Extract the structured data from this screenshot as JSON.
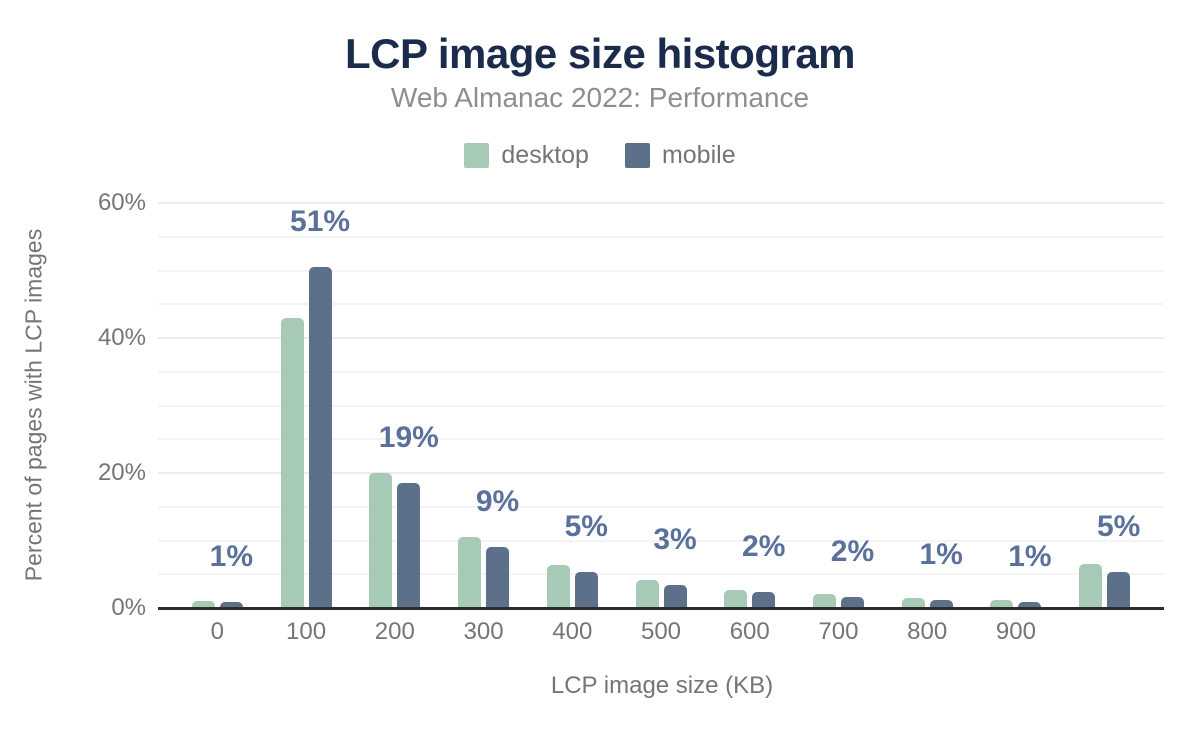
{
  "chart": {
    "title": "LCP image size histogram",
    "subtitle": "Web Almanac 2022: Performance",
    "x_axis_title": "LCP image size (KB)",
    "y_axis_title": "Percent of pages with LCP images"
  },
  "chart_data": {
    "type": "bar",
    "title": "LCP image size histogram",
    "subtitle": "Web Almanac 2022: Performance",
    "categories": [
      "0",
      "100",
      "200",
      "300",
      "400",
      "500",
      "600",
      "700",
      "800",
      "900",
      ""
    ],
    "series": [
      {
        "name": "desktop",
        "color": "#a6cab6",
        "values": [
          1.0,
          43,
          20,
          10.5,
          6.3,
          4.2,
          2.7,
          2.1,
          1.5,
          1.2,
          6.5
        ]
      },
      {
        "name": "mobile",
        "color": "#5d7089",
        "values": [
          0.9,
          50.5,
          18.5,
          9,
          5.4,
          3.4,
          2.4,
          1.7,
          1.2,
          0.9,
          5.3
        ]
      }
    ],
    "bar_labels": [
      "1%",
      "51%",
      "19%",
      "9%",
      "5%",
      "3%",
      "2%",
      "2%",
      "1%",
      "1%",
      "5%"
    ],
    "xlabel": "LCP image size (KB)",
    "ylabel": "Percent of pages with LCP images",
    "ylim": [
      0,
      60
    ],
    "yticks": [
      {
        "value": 0,
        "label": "0%"
      },
      {
        "value": 20,
        "label": "20%"
      },
      {
        "value": 40,
        "label": "40%"
      },
      {
        "value": 60,
        "label": "60%"
      }
    ],
    "grid_step": 5,
    "grid": true,
    "legend_position": "top",
    "colors": {
      "title": "#1b2b4b",
      "subtitle": "#8e8e8e",
      "axis_text": "#757575",
      "value_label": "#5a719c",
      "gridline_minor": "#f4f4f4",
      "gridline_major": "#ececec",
      "axis_line": "#2d2d30",
      "background": "#ffffff"
    }
  }
}
